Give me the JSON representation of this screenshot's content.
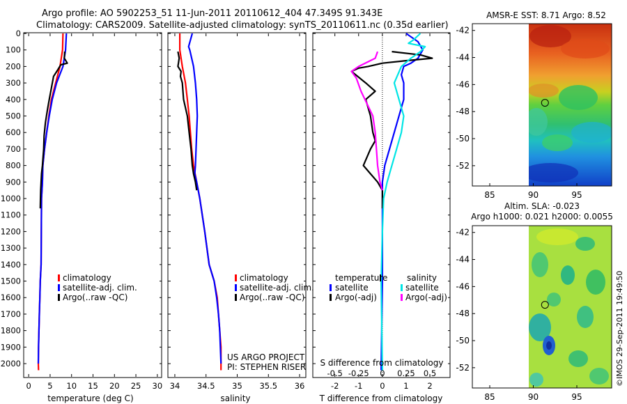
{
  "header": {
    "line1": "Argo profile: AO 5902253_51 11-Jun-2011 20110612_404 47.349S 91.343E",
    "line2": "Climatology: CARS2009. Satellite-adjusted climatology: synTS_20110611.nc (0.35d earlier)"
  },
  "colors": {
    "climatology": "#ff0000",
    "satellite": "#0000ff",
    "argo": "#000000",
    "sal_satellite": "#00e5e5",
    "sal_argo": "#ff00ff"
  },
  "chart_data": [
    {
      "id": "temperature",
      "type": "line",
      "xlabel": "temperature (deg C)",
      "ylabel": "",
      "xlim": [
        -1,
        31
      ],
      "ylim": [
        2080,
        0
      ],
      "xticks": [
        0,
        5,
        10,
        15,
        20,
        25,
        30
      ],
      "yticks": [
        0,
        100,
        200,
        300,
        400,
        500,
        600,
        700,
        800,
        900,
        1000,
        1100,
        1200,
        1300,
        1400,
        1500,
        1600,
        1700,
        1800,
        1900,
        2000
      ],
      "legend": {
        "placement": "lower-middle",
        "entries": [
          "climatology",
          "satellite-adj. clim.",
          "Argo(..raw -QC)"
        ]
      },
      "series": [
        {
          "name": "climatology",
          "color": "#ff0000",
          "x": [
            8.0,
            7.9,
            7.3,
            6.3,
            5.3,
            4.7,
            4.2,
            3.7,
            3.3,
            3.2,
            3.0,
            2.95,
            2.9,
            2.7,
            2.6,
            2.5,
            2.4,
            2.3,
            2.25,
            2.3
          ],
          "y": [
            0,
            100,
            200,
            300,
            400,
            500,
            600,
            700,
            800,
            900,
            1000,
            1200,
            1400,
            1500,
            1600,
            1700,
            1800,
            1900,
            2000,
            2040
          ]
        },
        {
          "name": "satellite-adj. clim.",
          "color": "#0000ff",
          "x": [
            8.8,
            8.6,
            8.0,
            6.5,
            5.5,
            4.8,
            4.2,
            3.7,
            3.3,
            3.2,
            3.0,
            2.95,
            2.9,
            2.7,
            2.6,
            2.5,
            2.4,
            2.3,
            2.25
          ],
          "y": [
            0,
            100,
            200,
            300,
            400,
            500,
            600,
            700,
            800,
            900,
            1000,
            1200,
            1400,
            1500,
            1600,
            1700,
            1800,
            1900,
            2000
          ]
        },
        {
          "name": "Argo(..raw -QC)",
          "color": "#000000",
          "x": [
            8.4,
            8.3,
            9.0,
            7.5,
            6.8,
            5.8,
            5.3,
            4.8,
            4.4,
            3.9,
            3.6,
            3.5,
            3.2,
            3.0,
            2.9,
            2.8,
            2.75,
            2.7
          ],
          "y": [
            110,
            150,
            180,
            190,
            220,
            260,
            330,
            400,
            460,
            540,
            620,
            700,
            800,
            850,
            900,
            950,
            1000,
            1060
          ]
        }
      ]
    },
    {
      "id": "salinity",
      "type": "line",
      "xlabel": "salinity",
      "ylabel": "",
      "xlim": [
        33.9,
        36.1
      ],
      "ylim": [
        2080,
        0
      ],
      "xticks": [
        34,
        34.5,
        35,
        35.5,
        36
      ],
      "xtick_labels": [
        "34",
        "34.5",
        "35",
        "35.5",
        "36"
      ],
      "legend": {
        "placement": "lower-right",
        "entries": [
          "climatology",
          "satellite-adj. clim.",
          "Argo(..raw -QC)"
        ]
      },
      "annotations": [
        "US ARGO PROJECT",
        "PI: STEPHEN RISER"
      ],
      "series": [
        {
          "name": "climatology",
          "color": "#ff0000",
          "x": [
            34.08,
            34.08,
            34.12,
            34.17,
            34.2,
            34.23,
            34.25,
            34.27,
            34.3,
            34.35,
            34.4,
            34.48,
            34.55,
            34.63,
            34.68,
            34.7,
            34.72,
            34.74,
            34.74
          ],
          "y": [
            0,
            100,
            200,
            300,
            400,
            500,
            600,
            700,
            800,
            900,
            1000,
            1200,
            1400,
            1500,
            1600,
            1700,
            1800,
            1900,
            2040
          ]
        },
        {
          "name": "satellite-adj. clim.",
          "color": "#0000ff",
          "x": [
            34.28,
            34.22,
            34.24,
            34.3,
            34.33,
            34.35,
            34.36,
            34.35,
            34.34,
            34.33,
            34.32,
            34.35,
            34.4,
            34.48,
            34.55,
            34.63,
            34.67,
            34.7,
            34.72,
            34.73,
            34.74
          ],
          "y": [
            0,
            80,
            100,
            200,
            300,
            400,
            500,
            600,
            700,
            800,
            850,
            900,
            1000,
            1200,
            1400,
            1500,
            1600,
            1700,
            1800,
            1900,
            2000
          ]
        },
        {
          "name": "Argo(..raw -QC)",
          "color": "#000000",
          "x": [
            34.05,
            34.07,
            34.05,
            34.1,
            34.09,
            34.12,
            34.14,
            34.2,
            34.23,
            34.26,
            34.28,
            34.3,
            34.33,
            34.35
          ],
          "y": [
            110,
            150,
            200,
            230,
            260,
            300,
            400,
            500,
            600,
            700,
            800,
            850,
            900,
            950
          ]
        }
      ]
    },
    {
      "id": "difference",
      "type": "line",
      "xlabel": "T difference from climatology",
      "top_label": "S difference from climatology",
      "xlim": [
        -2.9,
        2.85
      ],
      "ylim": [
        2080,
        0
      ],
      "xticks": [
        -2,
        -1,
        0,
        1,
        2
      ],
      "sdiff_ticks": [
        -0.5,
        -0.25,
        0,
        0.25,
        0.5
      ],
      "sdiff_tick_labels": [
        "-0.5",
        "-0.25",
        "0",
        "0.25",
        "0.5"
      ],
      "legend": {
        "placement": "lower-middle",
        "headers": [
          "temperature",
          "salinity"
        ],
        "entries": [
          "satellite",
          "Argo(-adj)",
          "satellite",
          "Argo(-adj)"
        ]
      },
      "series": [
        {
          "name": "temperature satellite",
          "color": "#0000ff",
          "x": [
            1.0,
            1.5,
            1.7,
            1.5,
            1.2,
            0.9,
            0.8,
            0.9,
            0.9,
            0.7,
            0.5,
            0.3,
            0.1,
            0.0,
            0.0,
            0.0,
            -0.05
          ],
          "y": [
            0,
            50,
            100,
            150,
            180,
            200,
            250,
            300,
            400,
            500,
            600,
            700,
            800,
            900,
            1000,
            1500,
            2040
          ]
        },
        {
          "name": "temperature Argo(-adj)",
          "color": "#000000",
          "x": [
            0.4,
            1.6,
            2.1,
            1.0,
            0.0,
            -0.6,
            -1.0,
            -1.3,
            -0.7,
            -0.3,
            -0.7,
            -0.5,
            -0.4,
            -0.3,
            -0.5,
            -0.8,
            -0.5,
            -0.2,
            0.0,
            0.0
          ],
          "y": [
            110,
            130,
            150,
            165,
            180,
            200,
            210,
            230,
            300,
            350,
            400,
            500,
            600,
            650,
            700,
            800,
            850,
            900,
            950,
            1060
          ]
        },
        {
          "name": "salinity satellite",
          "color": "#00e5e5",
          "x": [
            1.6,
            1.3,
            1.1,
            1.8,
            1.6,
            1.2,
            0.8,
            0.5,
            0.7,
            0.9,
            0.8,
            0.6,
            0.4,
            0.2,
            0.05,
            0.0,
            -0.05,
            0.0
          ],
          "y": [
            0,
            40,
            60,
            80,
            110,
            150,
            200,
            300,
            400,
            500,
            600,
            700,
            800,
            900,
            1000,
            1200,
            1500,
            2040
          ]
        },
        {
          "name": "salinity Argo(-adj)",
          "color": "#ff00ff",
          "x": [
            -0.2,
            -0.3,
            -1.0,
            -1.3,
            -1.1,
            -0.9,
            -0.4,
            -0.3,
            -0.2,
            -0.1,
            0.0
          ],
          "y": [
            110,
            150,
            200,
            230,
            270,
            350,
            500,
            600,
            800,
            900,
            950
          ]
        }
      ]
    },
    {
      "id": "sst-map",
      "type": "heatmap",
      "title": "AMSR-E SST: 8.71 Argo: 8.52",
      "xlim": [
        83,
        99
      ],
      "ylim": [
        -53.5,
        -41.5
      ],
      "xticks": [
        85,
        90,
        95
      ],
      "yticks": [
        -42,
        -44,
        -46,
        -48,
        -50,
        -52
      ],
      "data_x_start": 90,
      "marker": {
        "lon": 91.343,
        "lat": -47.349
      }
    },
    {
      "id": "sla-map",
      "type": "heatmap",
      "title": "Altim. SLA: -0.023",
      "subtitle": "Argo h1000: 0.021 h2000: 0.0055",
      "xlim": [
        83,
        99
      ],
      "ylim": [
        -53.5,
        -41.5
      ],
      "xticks": [
        85,
        90,
        95
      ],
      "yticks": [
        -42,
        -44,
        -46,
        -48,
        -50,
        -52
      ],
      "data_x_start": 90,
      "marker": {
        "lon": 91.343,
        "lat": -47.349
      }
    }
  ],
  "footer": {
    "stamp": "©IMOS 29-Sep-2011 19:49:50"
  }
}
